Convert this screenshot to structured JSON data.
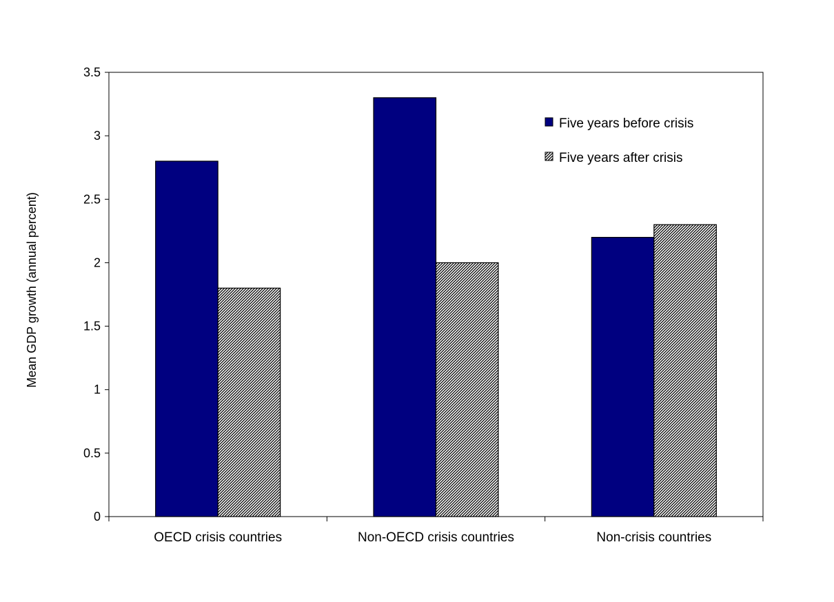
{
  "chart_data": {
    "type": "bar",
    "title": "",
    "xlabel": "",
    "ylabel": "Mean GDP growth (annual percent)",
    "ylim": [
      0,
      3.5
    ],
    "yticks": [
      "0",
      "0.5",
      "1",
      "1.5",
      "2",
      "2.5",
      "3",
      "3.5"
    ],
    "categories": [
      "OECD crisis countries",
      "Non-OECD crisis countries",
      "Non-crisis countries"
    ],
    "series": [
      {
        "name": "Five years before crisis",
        "values": [
          2.8,
          3.3,
          2.2
        ],
        "color": "#000080",
        "pattern": "solid"
      },
      {
        "name": "Five years after crisis",
        "values": [
          1.8,
          2.0,
          2.3
        ],
        "color": "#000000",
        "pattern": "diagonal-hatch"
      }
    ],
    "grid": false,
    "legend_position": "top-right"
  }
}
